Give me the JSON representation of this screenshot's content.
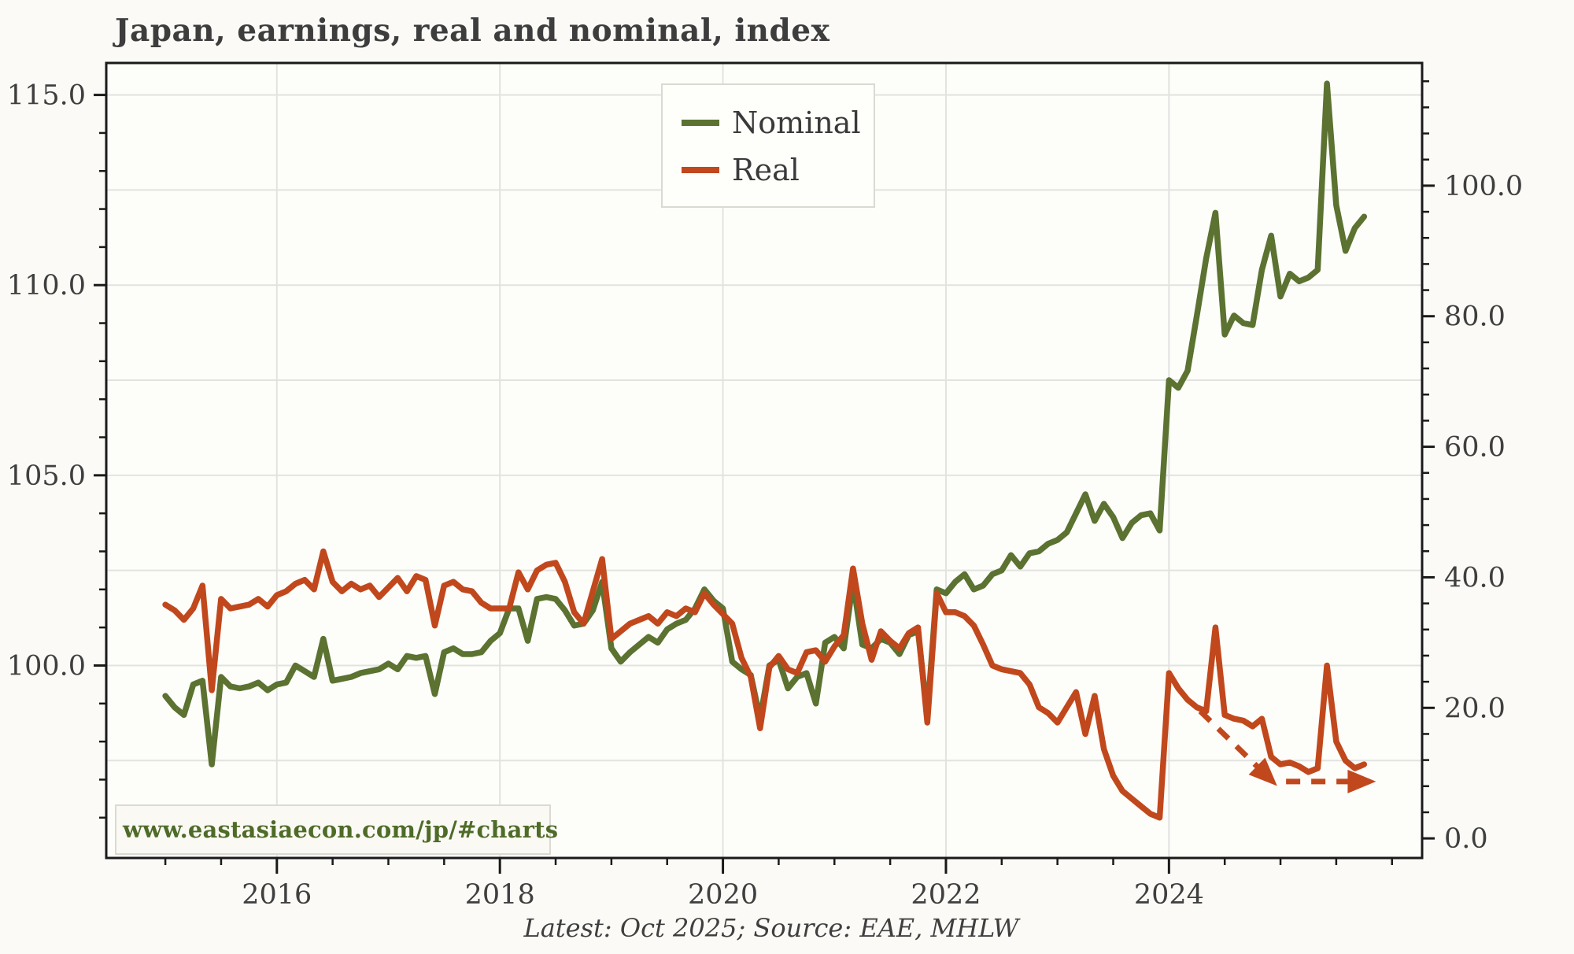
{
  "title": "Japan, earnings, real and nominal, index",
  "caption": "Latest: Oct 2025; Source: EAE, MHLW",
  "watermark": "www.eastasiaecon.com/jp/#charts",
  "legend": [
    {
      "label": "Nominal",
      "color": "#5b7231"
    },
    {
      "label": "Real",
      "color": "#c1481c"
    }
  ],
  "colors": {
    "nominal": "#5b7231",
    "real": "#c1481c",
    "grid": "#e2e2e0",
    "axis": "#1a1a1a",
    "text": "#3f3f3f",
    "background": "#fbfaf6"
  },
  "chart_data": {
    "type": "line",
    "title": "Japan, earnings, real and nominal, index",
    "frequency": "monthly",
    "x_start": "2015-01",
    "x_end": "2025-10",
    "x_axis": {
      "labeled_ticks": [
        {
          "value": 2016,
          "label": "2016"
        },
        {
          "value": 2018,
          "label": "2018"
        },
        {
          "value": 2020,
          "label": "2020"
        },
        {
          "value": 2022,
          "label": "2022"
        },
        {
          "value": 2024,
          "label": "2024"
        }
      ],
      "minor_step_years": 0.5,
      "range": [
        2014.47,
        2026.27
      ],
      "grid": true
    },
    "left_axis": {
      "labeled_ticks": [
        {
          "value": 115.0,
          "label": "115.0"
        },
        {
          "value": 110.0,
          "label": "110.0"
        },
        {
          "value": 105.0,
          "label": "105.0"
        },
        {
          "value": 100.0,
          "label": "100.0"
        }
      ],
      "minor_step": 1.0,
      "grid_step": 2.5,
      "range": [
        94.94,
        115.84
      ]
    },
    "right_axis": {
      "labeled_ticks": [
        {
          "value": 100.0,
          "label": "100.0"
        },
        {
          "value": 80.0,
          "label": "80.0"
        },
        {
          "value": 60.0,
          "label": "60.0"
        },
        {
          "value": 40.0,
          "label": "40.0"
        },
        {
          "value": 20.0,
          "label": "20.0"
        },
        {
          "value": 0.0,
          "label": "0.0"
        }
      ],
      "minor_step": 4.0,
      "range": [
        -3.0,
        118.8
      ]
    },
    "series": [
      {
        "name": "Nominal",
        "color": "#5b7231",
        "axis": "left",
        "values": [
          99.2,
          98.9,
          98.7,
          99.5,
          99.6,
          97.4,
          99.7,
          99.45,
          99.4,
          99.45,
          99.55,
          99.35,
          99.5,
          99.55,
          100.0,
          99.85,
          99.7,
          100.7,
          99.6,
          99.65,
          99.7,
          99.8,
          99.85,
          99.9,
          100.05,
          99.9,
          100.25,
          100.2,
          100.25,
          99.25,
          100.35,
          100.45,
          100.3,
          100.3,
          100.35,
          100.65,
          100.85,
          101.5,
          101.5,
          100.65,
          101.75,
          101.8,
          101.75,
          101.45,
          101.05,
          101.1,
          101.45,
          102.2,
          100.45,
          100.1,
          100.35,
          100.55,
          100.75,
          100.6,
          100.95,
          101.1,
          101.2,
          101.5,
          102.0,
          101.7,
          101.5,
          100.1,
          99.9,
          99.75,
          98.6,
          100.0,
          100.15,
          99.4,
          99.7,
          99.8,
          99.0,
          100.6,
          100.75,
          100.45,
          102.2,
          100.55,
          100.45,
          100.7,
          100.6,
          100.3,
          100.8,
          100.9,
          98.7,
          102.0,
          101.9,
          102.2,
          102.4,
          102.0,
          102.1,
          102.4,
          102.5,
          102.9,
          102.6,
          102.95,
          103.0,
          103.2,
          103.3,
          103.5,
          104.0,
          104.5,
          103.8,
          104.25,
          103.9,
          103.35,
          103.75,
          103.95,
          104.0,
          103.55,
          107.5,
          107.3,
          107.75,
          109.2,
          110.7,
          111.9,
          108.7,
          109.2,
          109.0,
          108.95,
          110.4,
          111.3,
          109.7,
          110.3,
          110.1,
          110.2,
          110.4,
          115.3,
          112.1,
          110.9,
          111.5,
          111.8
        ]
      },
      {
        "name": "Real",
        "color": "#c1481c",
        "axis": "left",
        "values": [
          101.6,
          101.45,
          101.2,
          101.5,
          102.1,
          99.35,
          101.75,
          101.5,
          101.55,
          101.6,
          101.75,
          101.55,
          101.85,
          101.95,
          102.15,
          102.25,
          102.0,
          103.0,
          102.2,
          101.95,
          102.15,
          102.0,
          102.1,
          101.8,
          102.05,
          102.3,
          101.95,
          102.35,
          102.25,
          101.05,
          102.1,
          102.2,
          102.0,
          101.95,
          101.65,
          101.5,
          101.5,
          101.5,
          102.45,
          102.0,
          102.5,
          102.65,
          102.7,
          102.2,
          101.4,
          101.1,
          101.95,
          102.8,
          100.7,
          100.9,
          101.1,
          101.2,
          101.3,
          101.1,
          101.4,
          101.3,
          101.5,
          101.4,
          101.9,
          101.6,
          101.35,
          101.1,
          100.2,
          99.7,
          98.35,
          99.95,
          100.25,
          99.9,
          99.8,
          100.35,
          100.4,
          100.1,
          100.5,
          100.8,
          102.55,
          101.1,
          100.15,
          100.9,
          100.65,
          100.45,
          100.85,
          101.0,
          98.5,
          101.9,
          101.4,
          101.4,
          101.3,
          101.05,
          100.55,
          100.0,
          99.9,
          99.85,
          99.8,
          99.5,
          98.9,
          98.75,
          98.5,
          98.9,
          99.3,
          98.2,
          99.2,
          97.8,
          97.1,
          96.7,
          96.5,
          96.3,
          96.1,
          96.0,
          99.8,
          99.4,
          99.1,
          98.9,
          98.8,
          101.0,
          98.7,
          98.6,
          98.55,
          98.4,
          98.6,
          97.6,
          97.4,
          97.45,
          97.35,
          97.2,
          97.3,
          100.0,
          98.0,
          97.5,
          97.3,
          97.4
        ]
      }
    ],
    "annotations": [
      {
        "type": "dashed-arrow",
        "color": "#c1481c",
        "from": {
          "t": 2024.28,
          "v": 98.8
        },
        "to": {
          "t": 2024.93,
          "v": 96.95
        }
      },
      {
        "type": "dashed-arrow",
        "color": "#c1481c",
        "from": {
          "t": 2025.05,
          "v": 96.95
        },
        "to": {
          "t": 2025.8,
          "v": 96.95
        }
      }
    ],
    "legend_position": "upper-center"
  }
}
